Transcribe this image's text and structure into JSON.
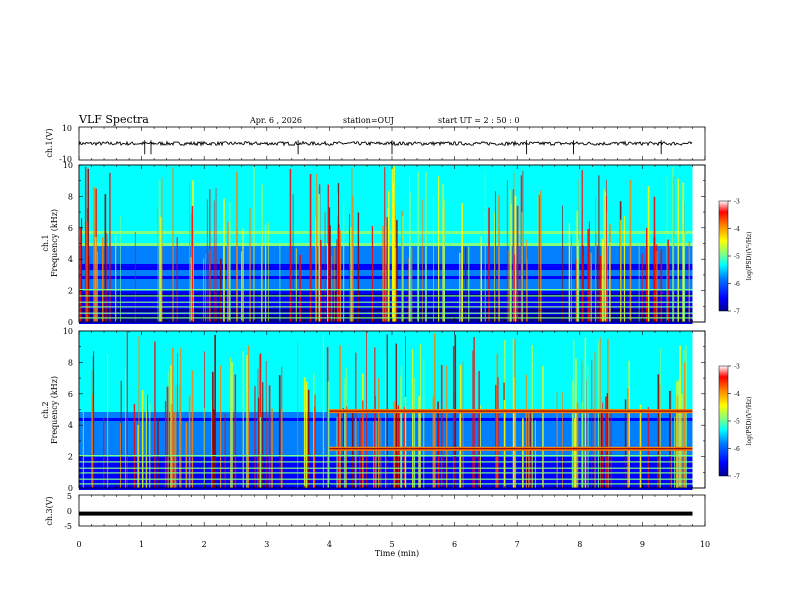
{
  "header": {
    "title": "VLF Spectra",
    "date": "Apr. 6  , 2026",
    "station": "station=OUJ",
    "start_ut": "start UT =  2 : 50 : 0"
  },
  "colors": {
    "colormap": [
      "#00008f",
      "#0000ff",
      "#0080ff",
      "#00ffff",
      "#80ff80",
      "#ffff00",
      "#ff8000",
      "#ff0000",
      "#8f0000"
    ]
  },
  "chart_data": [
    {
      "id": "ch1v",
      "type": "line",
      "ylabel": "ch.1(V)",
      "ylim": [
        -10,
        10
      ],
      "ytick_labels": [
        "10",
        "-10"
      ],
      "xlim": [
        0,
        10
      ],
      "baseline": 0,
      "spikes": [
        1.05,
        1.15,
        3.5,
        5.0,
        7.15,
        7.9,
        9.3
      ]
    },
    {
      "id": "ch1",
      "type": "heatmap",
      "ylabel_channel": "ch.1",
      "ylabel": "Frequency (kHz)",
      "xlim": [
        0,
        10.0
      ],
      "ylim": [
        0,
        10
      ],
      "ytick_labels": [
        "0",
        "2",
        "4",
        "6",
        "8",
        "10"
      ],
      "colorbar": {
        "label": "log(PSD)(V²/Hz)",
        "range": [
          -7,
          -3
        ],
        "tick_labels": [
          "-3",
          "-4",
          "-5",
          "-6",
          "-7"
        ]
      },
      "data_end_min": 9.8,
      "tone_lines_khz": []
    },
    {
      "id": "ch2",
      "type": "heatmap",
      "ylabel_channel": "ch.2",
      "ylabel": "Frequency (kHz)",
      "xlim": [
        0,
        10.0
      ],
      "ylim": [
        0,
        10
      ],
      "ytick_labels": [
        "0",
        "2",
        "4",
        "6",
        "8",
        "10"
      ],
      "colorbar": {
        "label": "log(PSD)(V²/Hz)",
        "range": [
          -7,
          -3
        ],
        "tick_labels": [
          "-3",
          "-4",
          "-5",
          "-6",
          "-7"
        ]
      },
      "data_end_min": 9.8,
      "tone_lines_khz": [
        {
          "start_min": 4.0,
          "end_min": 9.8,
          "freq_khz": 4.9
        },
        {
          "start_min": 4.0,
          "end_min": 9.8,
          "freq_khz": 2.5
        }
      ]
    },
    {
      "id": "ch3v",
      "type": "line",
      "ylabel": "ch.3(V)",
      "ylim": [
        -5,
        5
      ],
      "ytick_labels": [
        "5",
        "0",
        "-5"
      ],
      "xlim": [
        0,
        10
      ],
      "baseline": -1
    }
  ],
  "xaxis": {
    "label": "Time (min)",
    "tick_labels": [
      "0",
      "1",
      "2",
      "3",
      "4",
      "5",
      "6",
      "7",
      "8",
      "9",
      "10"
    ],
    "range": [
      0,
      10
    ]
  }
}
